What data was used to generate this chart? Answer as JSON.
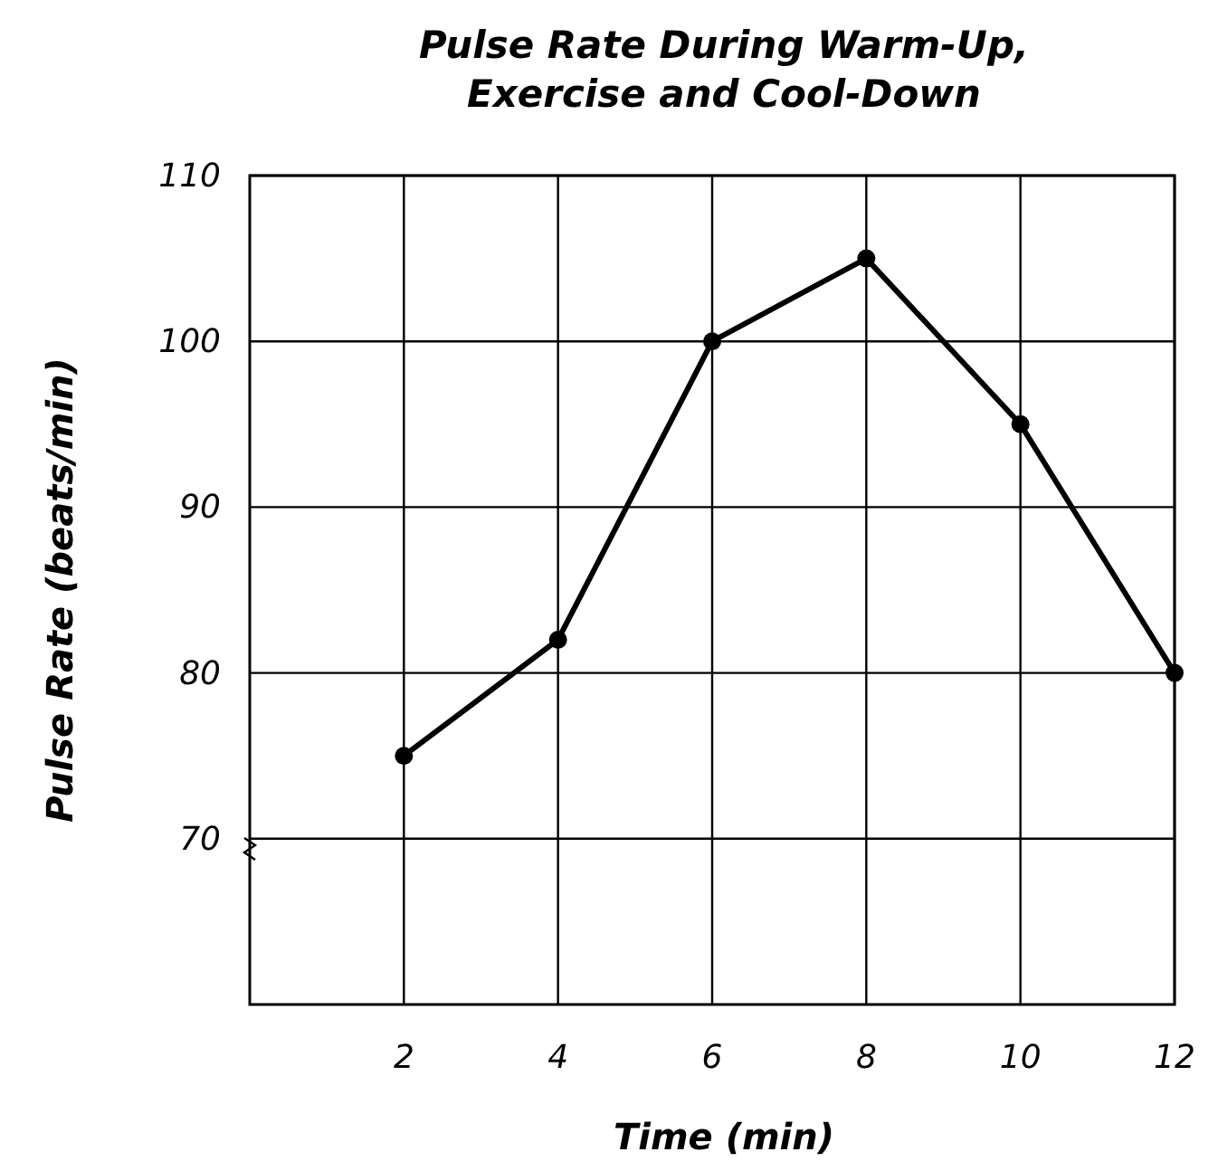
{
  "chart_data": {
    "type": "line",
    "title": "Pulse Rate During Warm-Up,\nExercise and Cool-Down",
    "xlabel": "Time (min)",
    "ylabel": "Pulse Rate (beats/min)",
    "x": [
      2,
      4,
      6,
      8,
      10,
      12
    ],
    "series": [
      {
        "color": "#000000",
        "values": [
          75,
          82,
          100,
          105,
          95,
          80
        ]
      }
    ],
    "xlim": [
      0,
      12
    ],
    "xticks": [
      2,
      4,
      6,
      8,
      10,
      12
    ],
    "ylim": [
      60,
      110
    ],
    "yticks": [
      70,
      80,
      90,
      100,
      110
    ],
    "grid": true,
    "marker": "circle",
    "line_style": "solid"
  }
}
